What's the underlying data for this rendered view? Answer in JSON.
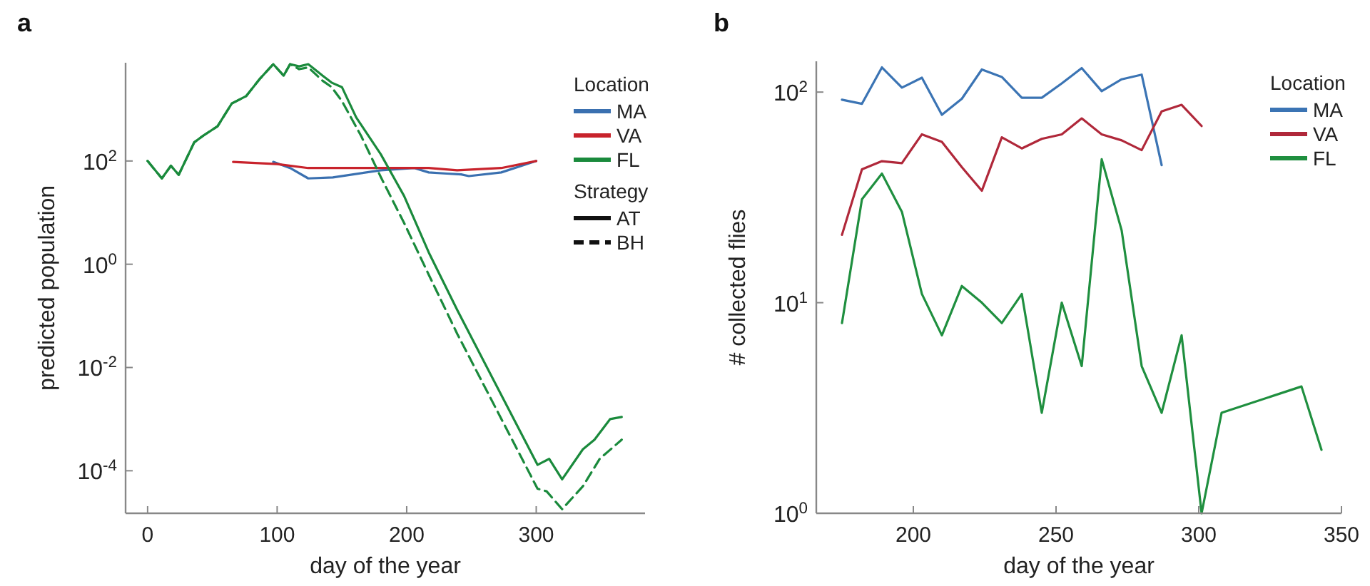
{
  "chart_data": [
    {
      "type": "line",
      "title": "a",
      "xlabel": "day of the year",
      "ylabel": "predicted population",
      "log": "y",
      "legend": "top right",
      "legend_title": "Location",
      "annotations": [
        "Strategy",
        "AT",
        "BH"
      ],
      "xlim": [
        -17,
        384
      ],
      "xticks": [
        0,
        100,
        200,
        300
      ],
      "ylim": [
        1.5e-05,
        8000
      ],
      "yticks": [
        {
          "value": 0.0001,
          "label": "10$^{-4}$"
        },
        {
          "value": 0.01,
          "label": "10$^{-2}$"
        },
        {
          "value": 1,
          "label": "10$^{0}$"
        },
        {
          "value": 100,
          "label": "10$^{2}$"
        }
      ],
      "series": [
        {
          "name": "MA",
          "color": "#3a70b0",
          "x": [
            97,
            110,
            124,
            143,
            180,
            206,
            217,
            231,
            242,
            248,
            273,
            300
          ],
          "values": [
            96,
            73,
            46,
            48,
            66,
            73,
            60,
            57,
            55,
            51,
            60,
            100
          ]
        },
        {
          "name": "VA",
          "color": "#c8232c",
          "x": [
            66,
            100,
            124,
            180,
            217,
            239,
            273,
            300
          ],
          "values": [
            96,
            87,
            73,
            73,
            73,
            66,
            73,
            100
          ]
        },
        {
          "name": "FL",
          "color": "#1a8a3c",
          "line_style": "solid",
          "x": [
            0,
            11,
            18,
            24,
            36,
            43,
            54,
            65,
            76,
            87,
            97,
            105,
            110,
            117,
            124,
            135,
            142,
            150,
            161,
            180,
            198,
            217,
            239,
            301,
            310,
            320,
            336,
            345,
            357,
            366
          ],
          "values": [
            100,
            46,
            81,
            54,
            230,
            310,
            470,
            1300,
            1800,
            4000,
            7500,
            4500,
            7500,
            6800,
            7500,
            4500,
            3300,
            2700,
            700,
            135,
            21,
            1.7,
            0.13,
            0.00013,
            0.00017,
            6.8e-05,
            0.00026,
            0.0004,
            0.001,
            0.0011
          ]
        },
        {
          "color": "#1a8a3c",
          "line_style": "dashed",
          "x": [
            0,
            11,
            18,
            24,
            36,
            43,
            54,
            65,
            76,
            87,
            97,
            105,
            110,
            117,
            124,
            135,
            142,
            150,
            165,
            180,
            198,
            217,
            239,
            301,
            308,
            320,
            336,
            349,
            366
          ],
          "values": [
            100,
            46,
            81,
            54,
            230,
            310,
            470,
            1300,
            1800,
            4000,
            7500,
            4500,
            7500,
            6000,
            6500,
            3600,
            2700,
            1450,
            300,
            49,
            6.3,
            0.63,
            0.045,
            4.5e-05,
            4e-05,
            1.8e-05,
            5e-05,
            0.00017,
            0.0004
          ]
        }
      ]
    },
    {
      "type": "line",
      "title": "b",
      "xlabel": "day of the year",
      "ylabel": "# collected flies",
      "log": "y",
      "legend": "top right",
      "legend_title": "Location",
      "xlim": [
        166,
        350
      ],
      "xticks": [
        200,
        250,
        300,
        350
      ],
      "ylim": [
        1,
        140
      ],
      "yticks": [
        {
          "value": 1,
          "label": "10$^{0}$"
        },
        {
          "value": 10,
          "label": "10$^{1}$"
        },
        {
          "value": 100,
          "label": "10$^{2}$"
        }
      ],
      "series": [
        {
          "name": "MA",
          "color": "#3b74b4",
          "x": [
            175,
            182,
            189,
            196,
            203,
            210,
            217,
            224,
            231,
            238,
            245,
            252,
            259,
            266,
            273,
            280,
            287
          ],
          "values": [
            92,
            88,
            131,
            105,
            117,
            78,
            93,
            128,
            118,
            94,
            94,
            110,
            130,
            101,
            115,
            121,
            45
          ]
        },
        {
          "name": "VA",
          "color": "#b0283a",
          "x": [
            175,
            182,
            189,
            196,
            203,
            210,
            217,
            224,
            231,
            238,
            245,
            252,
            259,
            266,
            273,
            280,
            287,
            294,
            301
          ],
          "values": [
            21,
            43,
            47,
            46,
            63,
            58,
            44,
            34,
            61,
            54,
            60,
            63,
            75,
            63,
            59,
            53,
            81,
            87,
            69
          ]
        },
        {
          "name": "FL",
          "color": "#1f8f3f",
          "x": [
            175,
            182,
            189,
            196,
            203,
            210,
            217,
            224,
            231,
            238,
            245,
            252,
            259,
            266,
            273,
            280,
            287,
            294,
            301,
            308,
            336,
            343
          ],
          "values": [
            8,
            31,
            41,
            27,
            11,
            7,
            12,
            10,
            8,
            11,
            3,
            10,
            5,
            48,
            22,
            5,
            3,
            7,
            1,
            3,
            4,
            2
          ]
        }
      ]
    }
  ]
}
